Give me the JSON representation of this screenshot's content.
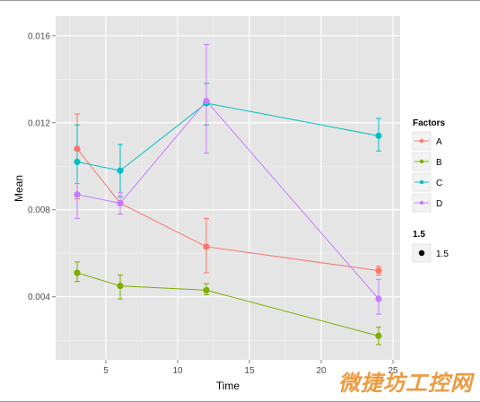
{
  "chart_data": {
    "type": "line",
    "xlabel": "Time",
    "ylabel": "Mean",
    "xlim": [
      1.5,
      25.5
    ],
    "ylim": [
      0.0011,
      0.0169
    ],
    "x_ticks": [
      5,
      10,
      15,
      20,
      25
    ],
    "x_tick_labels": [
      "5",
      "10",
      "15",
      "20",
      "25"
    ],
    "y_ticks": [
      0.004,
      0.008,
      0.012,
      0.016
    ],
    "y_tick_labels": [
      "0.004",
      "0.008",
      "0.012",
      "0.016"
    ],
    "grid": true,
    "legend_position": "right",
    "legend_title": "Factors",
    "size_legend_title": "1.5",
    "size_legend_label": "1.5",
    "series": [
      {
        "name": "A",
        "color": "#F8766D",
        "x": [
          3,
          6,
          12,
          24
        ],
        "y": [
          0.0108,
          0.0083,
          0.0063,
          0.0052
        ],
        "err_low": [
          0.0085,
          0.0078,
          0.0051,
          0.005
        ],
        "err_high": [
          0.0124,
          0.0086,
          0.0076,
          0.0054
        ]
      },
      {
        "name": "B",
        "color": "#7CAE00",
        "x": [
          3,
          6,
          12,
          24
        ],
        "y": [
          0.0051,
          0.0045,
          0.0043,
          0.0022
        ],
        "err_low": [
          0.0047,
          0.0039,
          0.0041,
          0.0018
        ],
        "err_high": [
          0.0056,
          0.005,
          0.0046,
          0.0026
        ]
      },
      {
        "name": "C",
        "color": "#00BFC4",
        "x": [
          3,
          6,
          12,
          24
        ],
        "y": [
          0.0102,
          0.0098,
          0.0129,
          0.0114
        ],
        "err_low": [
          0.0086,
          0.0086,
          0.0119,
          0.0107
        ],
        "err_high": [
          0.0119,
          0.011,
          0.0138,
          0.0122
        ]
      },
      {
        "name": "D",
        "color": "#C77CFF",
        "x": [
          3,
          6,
          12,
          24
        ],
        "y": [
          0.0087,
          0.0083,
          0.013,
          0.0039
        ],
        "err_low": [
          0.0076,
          0.0078,
          0.0106,
          0.0032
        ],
        "err_high": [
          0.0092,
          0.0088,
          0.0156,
          0.0048
        ]
      }
    ]
  },
  "watermark": "微捷坊工控网"
}
